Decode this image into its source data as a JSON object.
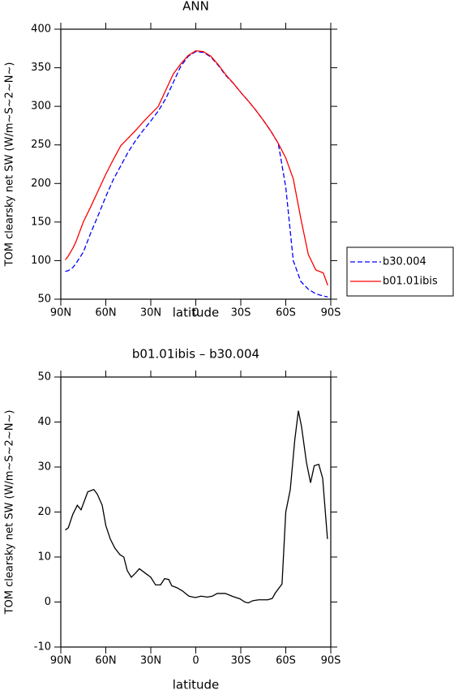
{
  "chart_data": [
    {
      "type": "line",
      "title": "ANN",
      "xlabel": "latitude",
      "ylabel": "TOM clearsky net SW (W/m~S~2~N~)",
      "x": [
        87,
        85,
        82,
        80,
        75,
        70,
        65,
        60,
        55,
        50,
        45,
        40,
        35,
        30,
        25,
        20,
        15,
        10,
        5,
        0,
        -5,
        -10,
        -15,
        -20,
        -25,
        -30,
        -35,
        -40,
        -45,
        -50,
        -55,
        -60,
        -65,
        -70,
        -75,
        -80,
        -85,
        -88
      ],
      "series": [
        {
          "name": "b30.004",
          "color": "#0000ff",
          "dash": true,
          "values": [
            86,
            87,
            91,
            96,
            111,
            136,
            159,
            183,
            205,
            223,
            241,
            256,
            269,
            281,
            294,
            310,
            331,
            352,
            365,
            371,
            370,
            364,
            353,
            340,
            330,
            318,
            307,
            295,
            282,
            268,
            252,
            195,
            100,
            73,
            63,
            57,
            54,
            53
          ]
        },
        {
          "name": "b01.01ibis",
          "color": "#ff0000",
          "dash": false,
          "values": [
            101,
            106,
            116,
            124,
            150,
            170,
            191,
            212,
            231,
            249,
            259,
            269,
            280,
            290,
            300,
            321,
            342,
            355,
            366,
            372,
            371,
            365,
            354,
            341,
            330,
            318,
            307,
            295,
            282,
            268,
            252,
            233,
            206,
            155,
            108,
            88,
            84,
            68
          ]
        }
      ],
      "xlim": [
        90,
        -90
      ],
      "xticks": [
        {
          "value": 90,
          "label": "90N"
        },
        {
          "value": 60,
          "label": "60N"
        },
        {
          "value": 30,
          "label": "30N"
        },
        0,
        {
          "value": -30,
          "label": "30S"
        },
        {
          "value": -60,
          "label": "60S"
        },
        {
          "value": -90,
          "label": "90S"
        }
      ],
      "ylim": [
        50,
        400
      ],
      "yticks": [
        50,
        100,
        150,
        200,
        250,
        300,
        350,
        400
      ],
      "legend": "right"
    },
    {
      "type": "line",
      "title": "b01.01ibis – b30.004",
      "xlabel": "latitude",
      "ylabel": "TOM clearsky net SW (W/m~S~2~N~)",
      "x": [
        87,
        85,
        82,
        79,
        76.5,
        72,
        68,
        65.7,
        62.4,
        60,
        57,
        54,
        50.5,
        48,
        45.7,
        43,
        40,
        37.6,
        34,
        30,
        26.8,
        23.5,
        20.8,
        18,
        16,
        12.7,
        9,
        4.6,
        0.3,
        -3.5,
        -7.8,
        -11,
        -14.3,
        -19.7,
        -25,
        -29.5,
        -32.7,
        -35,
        -38,
        -42,
        -48,
        -51,
        -53,
        -57.5,
        -60,
        -63,
        -66,
        -68.4,
        -70.5,
        -73.8,
        -76.5,
        -79,
        -82,
        -84.6,
        -87.8
      ],
      "values": [
        16,
        16.5,
        19.5,
        21.5,
        20.5,
        24.5,
        25,
        24,
        21.5,
        17,
        14,
        12,
        10.5,
        10,
        7,
        5.5,
        6.5,
        7.4,
        6.5,
        5.5,
        3.8,
        3.8,
        5.2,
        5,
        3.6,
        3.2,
        2.5,
        1.3,
        1,
        1.3,
        1.1,
        1.3,
        1.9,
        1.9,
        1.2,
        0.7,
        0,
        -0.2,
        0.3,
        0.5,
        0.5,
        0.8,
        2,
        4,
        20,
        25,
        36,
        42.5,
        39,
        31,
        26.5,
        30.3,
        30.6,
        27.5,
        14
      ],
      "color": "#000000",
      "xlim": [
        90,
        -90
      ],
      "xticks": [
        {
          "value": 90,
          "label": "90N"
        },
        {
          "value": 60,
          "label": "60N"
        },
        {
          "value": 30,
          "label": "30N"
        },
        0,
        {
          "value": -30,
          "label": "30S"
        },
        {
          "value": -60,
          "label": "60S"
        },
        {
          "value": -90,
          "label": "90S"
        }
      ],
      "ylim": [
        -10,
        50
      ],
      "yticks": [
        -10,
        0,
        10,
        20,
        30,
        40,
        50
      ]
    }
  ]
}
